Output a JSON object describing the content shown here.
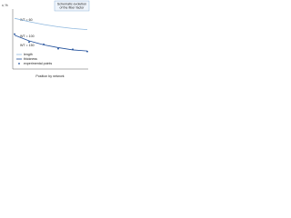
{
  "chart_data": {
    "type": "line",
    "y_label": "v, %",
    "x_label": "Position by network",
    "inset_title": [
      "Schematic evolution",
      "of the fiber factor"
    ],
    "annotations": [
      "WT = 60",
      "WT = 100",
      "WT = 150"
    ],
    "x": [
      0,
      2,
      4,
      6,
      8,
      10
    ],
    "xlim": [
      0,
      10
    ],
    "ylim": [
      0,
      1
    ],
    "series": [
      {
        "name": "length",
        "color": "#8fb8de",
        "style": "line",
        "values": [
          0.9,
          0.84,
          0.79,
          0.75,
          0.72,
          0.7
        ]
      },
      {
        "name": "thickness",
        "color": "#1f4e9a",
        "style": "line",
        "values": [
          0.6,
          0.5,
          0.43,
          0.38,
          0.34,
          0.32
        ]
      },
      {
        "name": "experimental points",
        "color": "#1f4e9a",
        "style": "points",
        "values": [
          0.62,
          0.48,
          0.44,
          0.36,
          0.35,
          0.31
        ]
      }
    ]
  }
}
